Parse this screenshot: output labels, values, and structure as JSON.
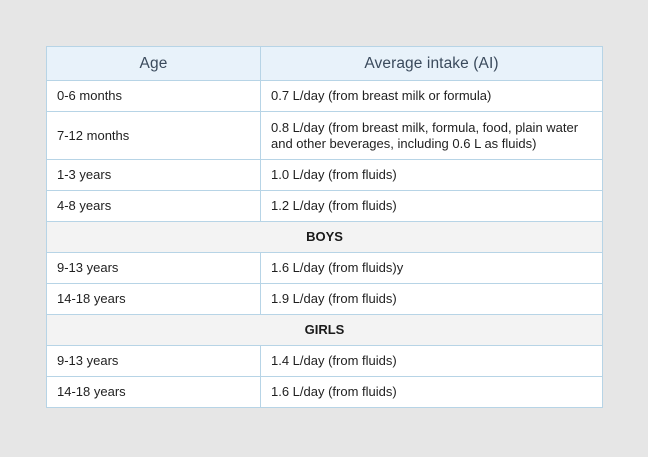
{
  "table": {
    "headers": [
      "Age",
      "Average intake (AI)"
    ],
    "rows": [
      {
        "age": "0-6 months",
        "intake": "0.7 L/day (from breast milk or formula)"
      },
      {
        "age": "7-12 months",
        "intake": "0.8 L/day (from breast milk, formula, food, plain water and other beverages, including 0.6 L as fluids)"
      },
      {
        "age": "1-3 years",
        "intake": "1.0 L/day (from fluids)"
      },
      {
        "age": "4-8 years",
        "intake": "1.2 L/day (from fluids)"
      }
    ],
    "boys": {
      "label": "BOYS",
      "rows": [
        {
          "age": "9-13 years",
          "intake": "1.6 L/day (from fluids)y"
        },
        {
          "age": "14-18 years",
          "intake": "1.9 L/day (from fluids)"
        }
      ]
    },
    "girls": {
      "label": "GIRLS",
      "rows": [
        {
          "age": "9-13 years",
          "intake": "1.4 L/day (from fluids)"
        },
        {
          "age": "14-18 years",
          "intake": "1.6 L/day (from fluids)"
        }
      ]
    }
  }
}
